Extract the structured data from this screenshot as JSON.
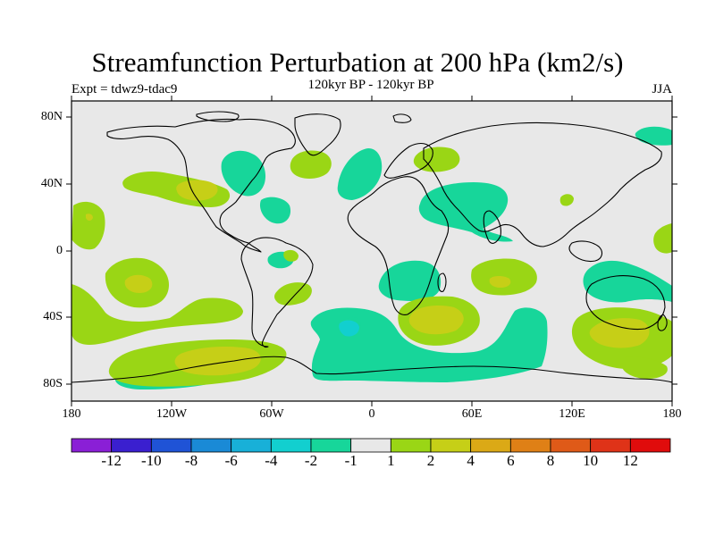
{
  "title": "Streamfunction Perturbation at 200 hPa (km2/s)",
  "experiment": "Expt = tdwz9-tdac9",
  "subtitle": "120kyr BP - 120kyr BP",
  "season": "JJA",
  "axes": {
    "y_ticks": [
      "80N",
      "40N",
      "0",
      "40S",
      "80S"
    ],
    "x_ticks": [
      "180",
      "120W",
      "60W",
      "0",
      "60E",
      "120E",
      "180"
    ]
  },
  "colorbar": {
    "labels": [
      "-12",
      "-10",
      "-8",
      "-6",
      "-4",
      "-2",
      "-1",
      "1",
      "2",
      "4",
      "6",
      "8",
      "10",
      "12"
    ],
    "colors": [
      "#8a1fd6",
      "#3a1fcf",
      "#1f53d6",
      "#1a8ad6",
      "#18b0d8",
      "#12cfcf",
      "#17d69a",
      "#e8e8e8",
      "#9ad615",
      "#c6cf17",
      "#dba916",
      "#df8016",
      "#df5a18",
      "#df3318",
      "#e00c0c"
    ]
  },
  "palette": {
    "background_ocean": "#e8e8e8",
    "neg_1_2": "#17d69a",
    "neg_2_4": "#12cfcf",
    "pos_1_2": "#9ad615",
    "pos_2_4": "#c6cf17"
  }
}
